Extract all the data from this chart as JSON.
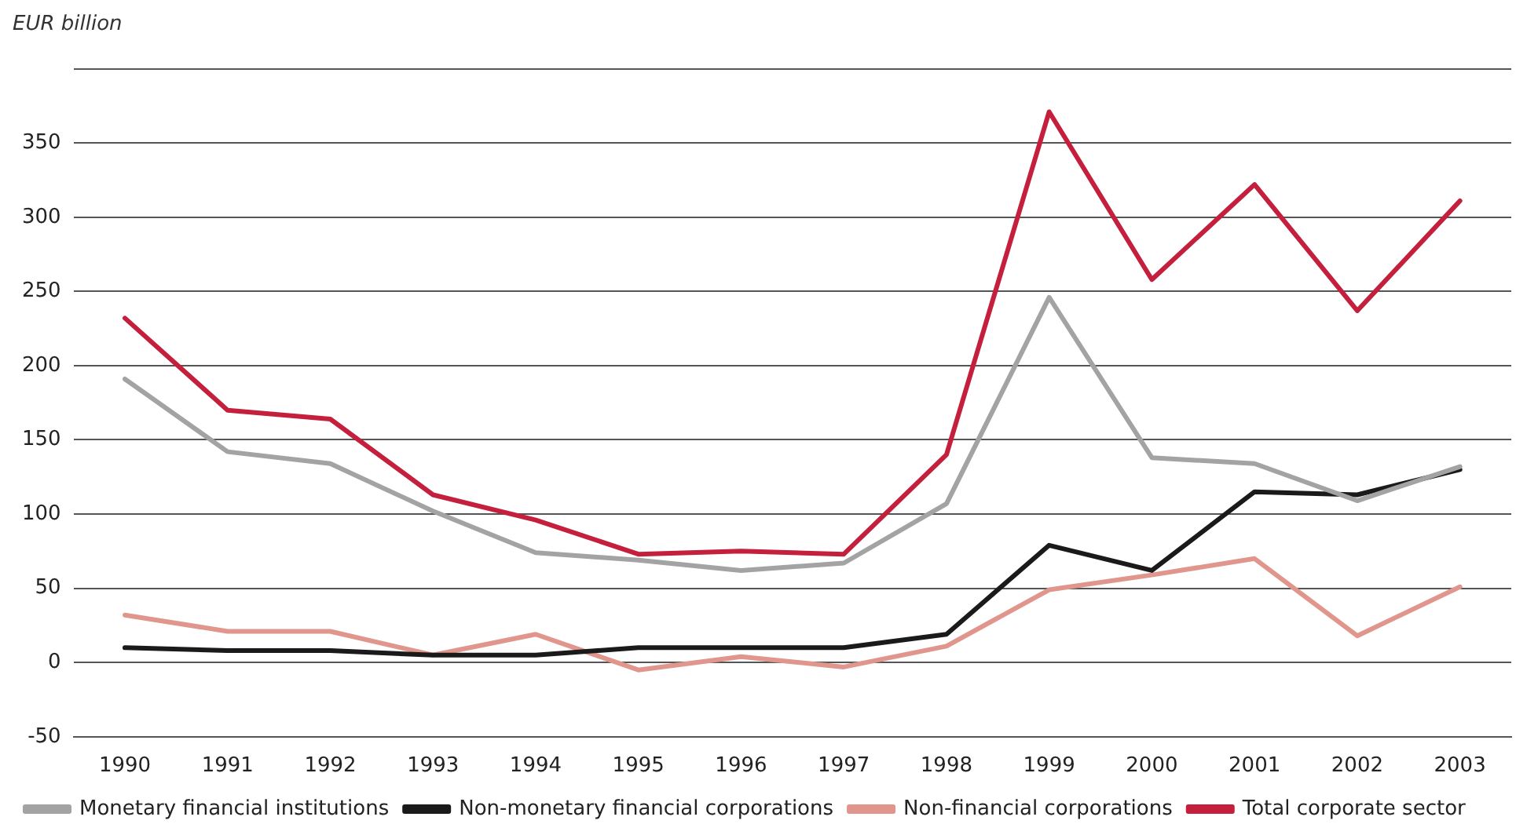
{
  "chart_data": {
    "type": "line",
    "ylabel": "EUR billion",
    "categories": [
      "1990",
      "1991",
      "1992",
      "1993",
      "1994",
      "1995",
      "1996",
      "1997",
      "1998",
      "1999",
      "2000",
      "2001",
      "2002",
      "2003"
    ],
    "series": [
      {
        "name": "Monetary financial institutions",
        "color": "#a3a3a3",
        "values": [
          191,
          142,
          134,
          102,
          74,
          69,
          62,
          67,
          107,
          246,
          138,
          134,
          109,
          132
        ]
      },
      {
        "name": "Non-monetary financial corporations",
        "color": "#1a1a1a",
        "values": [
          10,
          8,
          8,
          5,
          5,
          10,
          10,
          10,
          19,
          79,
          62,
          115,
          113,
          130
        ]
      },
      {
        "name": "Non-financial corporations",
        "color": "#e0968c",
        "values": [
          32,
          21,
          21,
          5,
          19,
          -5,
          4,
          -3,
          11,
          49,
          59,
          70,
          18,
          51
        ]
      },
      {
        "name": "Total corporate sector",
        "color": "#c41f3d",
        "values": [
          232,
          170,
          164,
          113,
          96,
          73,
          75,
          73,
          140,
          371,
          258,
          322,
          237,
          311
        ]
      }
    ],
    "ylim": [
      -50,
      400
    ],
    "yticks": [
      -50,
      0,
      50,
      100,
      150,
      200,
      250,
      300,
      350,
      {
        "value": 400,
        "label": null
      }
    ],
    "grid": "y",
    "legend": "bottom",
    "marker": "none",
    "line_style": "solid"
  }
}
